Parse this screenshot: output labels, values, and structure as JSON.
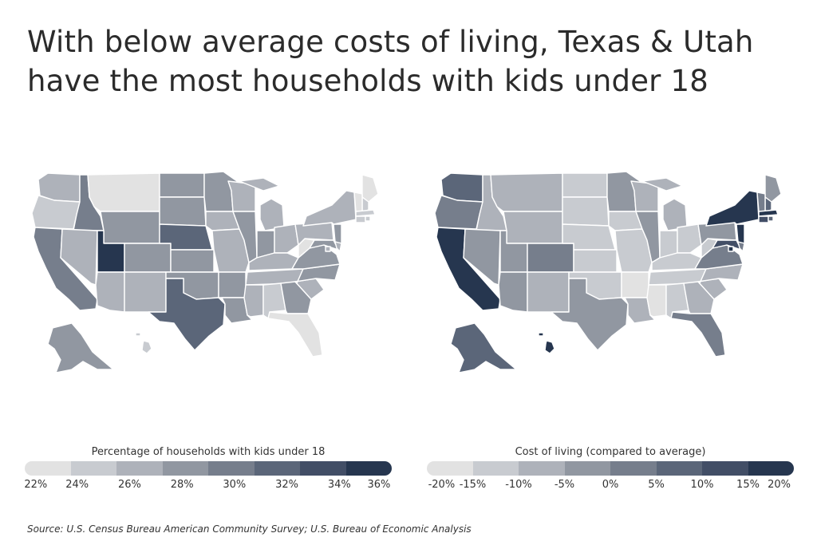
{
  "title": "With below average costs of living, Texas & Utah have the most households with kids under 18",
  "source": "Source: U.S. Census Bureau American Community Survey; U.S. Bureau of Economic Analysis",
  "palette": [
    "#e2e2e2",
    "#c8cbd0",
    "#aeb2ba",
    "#9197a1",
    "#767e8c",
    "#5b6679",
    "#424e66",
    "#26364f"
  ],
  "maps": [
    {
      "legend_title": "Percentage of households with kids under 18",
      "legend_ticks": [
        "22%",
        "24%",
        "26%",
        "28%",
        "30%",
        "32%",
        "34%",
        "36%"
      ],
      "states": {
        "WA": 2,
        "OR": 1,
        "CA": 4,
        "ID": 4,
        "NV": 2,
        "MT": 0,
        "WY": 3,
        "UT": 7,
        "AZ": 2,
        "CO": 3,
        "NM": 2,
        "ND": 3,
        "SD": 3,
        "NE": 5,
        "KS": 3,
        "OK": 3,
        "TX": 5,
        "MN": 3,
        "IA": 2,
        "MO": 2,
        "AR": 3,
        "LA": 3,
        "WI": 2,
        "IL": 3,
        "MI": 2,
        "IN": 3,
        "OH": 2,
        "KY": 2,
        "TN": 2,
        "MS": 2,
        "AL": 1,
        "GA": 3,
        "FL": 0,
        "SC": 2,
        "NC": 3,
        "VA": 3,
        "WV": 0,
        "PA": 2,
        "NY": 2,
        "MD": 3,
        "NJ": 3,
        "ME": 0,
        "NH": 1,
        "VT": 0,
        "MA": 1,
        "CT": 1,
        "RI": 1,
        "DE": 2,
        "DC": 2,
        "AK": 3,
        "HI": 1
      }
    },
    {
      "legend_title": "Cost of living (compared to average)",
      "legend_ticks": [
        "-20%",
        "-15%",
        "-10%",
        "-5%",
        "0%",
        "5%",
        "10%",
        "15%",
        "20%"
      ],
      "states": {
        "WA": 5,
        "OR": 4,
        "CA": 7,
        "ID": 2,
        "NV": 3,
        "MT": 2,
        "WY": 2,
        "UT": 3,
        "AZ": 3,
        "CO": 4,
        "NM": 2,
        "ND": 1,
        "SD": 1,
        "NE": 1,
        "KS": 1,
        "OK": 1,
        "TX": 3,
        "MN": 3,
        "IA": 1,
        "MO": 1,
        "AR": 0,
        "LA": 2,
        "WI": 2,
        "IL": 3,
        "MI": 2,
        "IN": 1,
        "OH": 1,
        "KY": 1,
        "TN": 1,
        "MS": 0,
        "AL": 1,
        "GA": 2,
        "FL": 4,
        "SC": 2,
        "NC": 2,
        "VA": 4,
        "WV": 1,
        "PA": 3,
        "NY": 7,
        "MD": 6,
        "NJ": 7,
        "ME": 3,
        "NH": 5,
        "VT": 4,
        "MA": 7,
        "CT": 6,
        "RI": 5,
        "DE": 4,
        "DC": 7,
        "AK": 5,
        "HI": 7
      }
    }
  ]
}
